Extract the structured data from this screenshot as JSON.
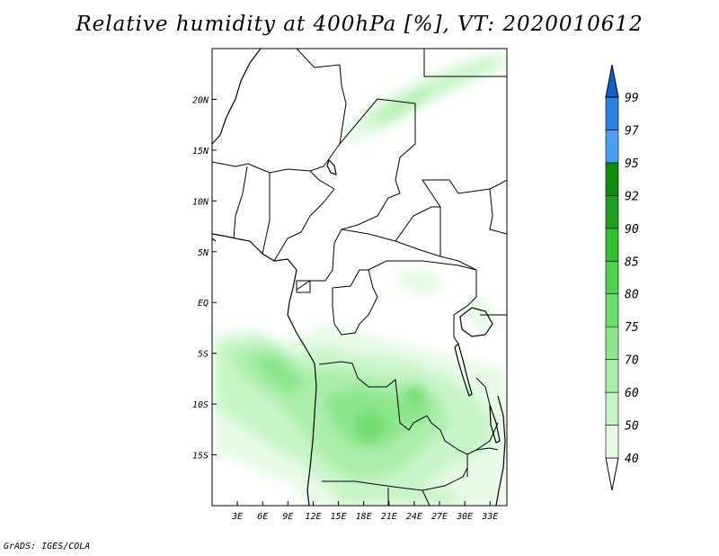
{
  "title": "Relative humidity at 400hPa [%], VT: 2020010612",
  "footer": "GrADS: IGES/COLA",
  "map": {
    "lon_range": [
      0,
      35
    ],
    "lat_range": [
      -20,
      25
    ],
    "lon_ticks": [
      {
        "v": 3,
        "label": "3E"
      },
      {
        "v": 6,
        "label": "6E"
      },
      {
        "v": 9,
        "label": "9E"
      },
      {
        "v": 12,
        "label": "12E"
      },
      {
        "v": 15,
        "label": "15E"
      },
      {
        "v": 18,
        "label": "18E"
      },
      {
        "v": 21,
        "label": "21E"
      },
      {
        "v": 24,
        "label": "24E"
      },
      {
        "v": 27,
        "label": "27E"
      },
      {
        "v": 30,
        "label": "30E"
      },
      {
        "v": 33,
        "label": "33E"
      }
    ],
    "lat_ticks": [
      {
        "v": 20,
        "label": "20N"
      },
      {
        "v": 15,
        "label": "15N"
      },
      {
        "v": 10,
        "label": "10N"
      },
      {
        "v": 5,
        "label": "5N"
      },
      {
        "v": 0,
        "label": "EQ"
      },
      {
        "v": -5,
        "label": "5S"
      },
      {
        "v": -10,
        "label": "10S"
      },
      {
        "v": -15,
        "label": "15S"
      }
    ]
  },
  "colorbar": {
    "levels": [
      "40",
      "50",
      "60",
      "70",
      "75",
      "80",
      "85",
      "90",
      "92",
      "95",
      "97",
      "99"
    ],
    "colors": [
      "#ffffff",
      "#e6fae6",
      "#c8f5c8",
      "#aaeeaa",
      "#8ce68c",
      "#6edc6e",
      "#50d250",
      "#32be32",
      "#1ea01e",
      "#0f8c0f",
      "#4a9ff0",
      "#2b7fe0",
      "#1462c8"
    ]
  }
}
